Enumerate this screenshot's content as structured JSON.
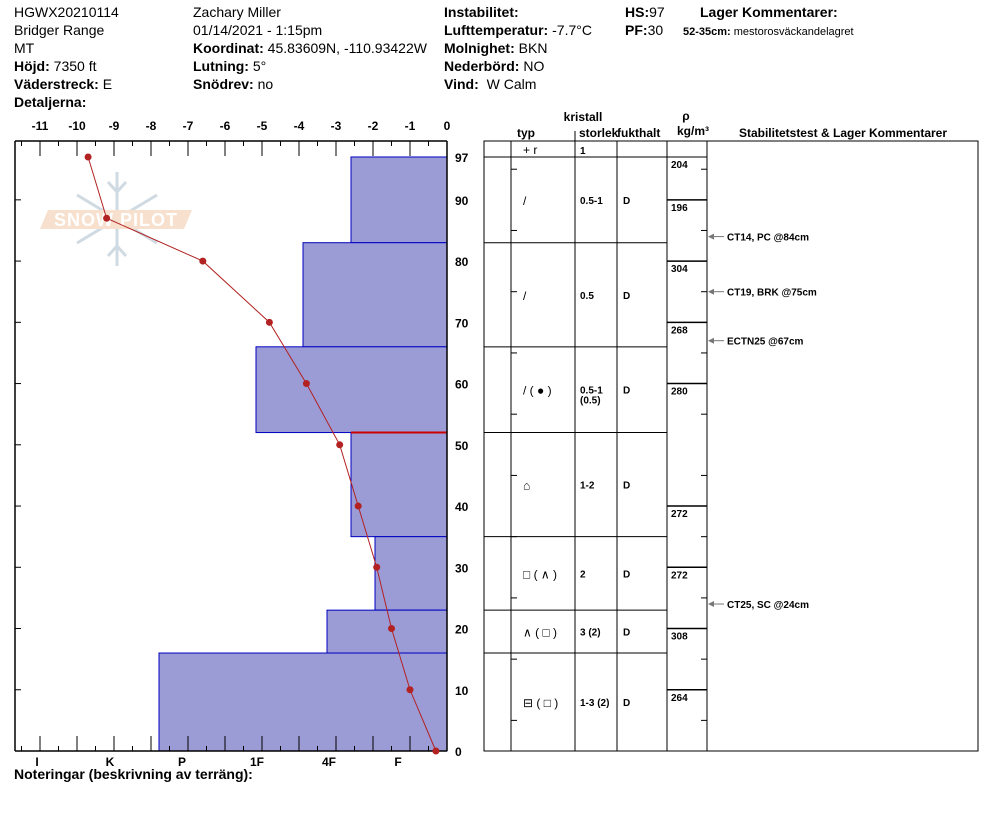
{
  "header": {
    "col1": [
      "HGWX20210114",
      "Bridger Range",
      "MT"
    ],
    "hojd": {
      "label": "Höjd:",
      "value": "7350 ft"
    },
    "vaderstreck": {
      "label": "Väderstreck:",
      "value": "E"
    },
    "detaljerna": {
      "label": "Detaljerna:"
    },
    "observer": "Zachary Miller",
    "datetime": "01/14/2021 - 1:15pm",
    "koordinat": {
      "label": "Koordinat:",
      "value": "45.83609N, -110.93422W"
    },
    "lutning": {
      "label": "Lutning:",
      "value": "5°"
    },
    "snodrev": {
      "label": "Snödrev:",
      "value": "no"
    },
    "instabilitet": {
      "label": "Instabilitet:",
      "value": ""
    },
    "lufttemperatur": {
      "label": "Lufttemperatur:",
      "value": "-7.7°C"
    },
    "molnighet": {
      "label": "Molnighet:",
      "value": "BKN"
    },
    "nederbord": {
      "label": "Nederbörd:",
      "value": "NO"
    },
    "vind": {
      "label": "Vind:",
      "value": "W Calm"
    },
    "hs": {
      "label": "HS:",
      "value": "97"
    },
    "pf": {
      "label": "PF:",
      "value": "30"
    },
    "lager_kommentarer_title": "Lager Kommentarer:",
    "lager_comment": {
      "label": "52-35cm:",
      "value": "mestorosväckandelagret"
    }
  },
  "footer": {
    "notes_label": "Noteringar (beskrivning av terräng):"
  },
  "watermark": "SNOW PILOT",
  "colors": {
    "hardness_fill": "#9b9bd6",
    "hardness_stroke": "#0000c0",
    "temperature": "#b22222",
    "concern_line": "#cc0000"
  },
  "table_headers": {
    "kristall": "kristall",
    "typ": "typ",
    "storlek": "storlek",
    "fukthalt": "fukthalt",
    "rho": "ρ",
    "density_unit": "kg/m³",
    "comments": "Stabilitetstest & Lager Kommentarer"
  },
  "chart_data": {
    "type": "snow-profile",
    "temperature_axis": {
      "ticks": [
        -11,
        -10,
        -9,
        -8,
        -7,
        -6,
        -5,
        -4,
        -3,
        -2,
        -1,
        0
      ],
      "range": [
        -11.7,
        0
      ],
      "unit": "°C"
    },
    "height_axis": {
      "ticks": [
        0,
        10,
        20,
        30,
        40,
        50,
        60,
        70,
        80,
        90,
        97
      ],
      "range": [
        0,
        97
      ],
      "unit": "cm"
    },
    "hardness_axis": {
      "labels": [
        "I",
        "K",
        "P",
        "1F",
        "4F",
        "F"
      ]
    },
    "temperature_profile": [
      {
        "h": 97,
        "t": -9.7
      },
      {
        "h": 87,
        "t": -9.2
      },
      {
        "h": 80,
        "t": -6.6
      },
      {
        "h": 70,
        "t": -4.8
      },
      {
        "h": 60,
        "t": -3.8
      },
      {
        "h": 50,
        "t": -2.9
      },
      {
        "h": 40,
        "t": -2.4
      },
      {
        "h": 30,
        "t": -1.9
      },
      {
        "h": 20,
        "t": -1.5
      },
      {
        "h": 10,
        "t": -1.0
      },
      {
        "h": 0,
        "t": -0.3
      }
    ],
    "concern_line_height": 52,
    "surface": {
      "typ": "+ r",
      "storlek": "1"
    },
    "layers": [
      {
        "top": 97,
        "bottom": 83,
        "hardness": "F+",
        "typ": "/",
        "storlek": "0.5-1",
        "fukthalt": "D"
      },
      {
        "top": 83,
        "bottom": 66,
        "hardness": "4F",
        "typ": "/",
        "storlek": "0.5",
        "fukthalt": "D"
      },
      {
        "top": 66,
        "bottom": 52,
        "hardness": "1F-",
        "typ": "/ ( ● )",
        "storlek": "0.5-1\n(0.5)",
        "fukthalt": "D"
      },
      {
        "top": 52,
        "bottom": 35,
        "hardness": "F+",
        "typ": "⌂",
        "storlek": "1-2",
        "fukthalt": "D"
      },
      {
        "top": 35,
        "bottom": 23,
        "hardness": "F",
        "typ": "□ ( ∧ )",
        "storlek": "2",
        "fukthalt": "D"
      },
      {
        "top": 23,
        "bottom": 16,
        "hardness": "4F-",
        "typ": "∧ ( □ )",
        "storlek": "3 (2)",
        "fukthalt": "D"
      },
      {
        "top": 16,
        "bottom": 0,
        "hardness": "P",
        "typ": "⊟ ( □ )",
        "storlek": "1-3 (2)",
        "fukthalt": "D"
      }
    ],
    "density": [
      {
        "top": 97,
        "bottom": 90,
        "value": "204"
      },
      {
        "top": 90,
        "bottom": 80,
        "value": "196"
      },
      {
        "top": 80,
        "bottom": 70,
        "value": "304"
      },
      {
        "top": 70,
        "bottom": 60,
        "value": "268"
      },
      {
        "top": 60,
        "bottom": 40,
        "value": "280"
      },
      {
        "top": 40,
        "bottom": 30,
        "value": "272"
      },
      {
        "top": 30,
        "bottom": 20,
        "value": "272"
      },
      {
        "top": 20,
        "bottom": 10,
        "value": "308"
      },
      {
        "top": 10,
        "bottom": 0,
        "value": "264"
      }
    ],
    "stability_tests": [
      {
        "h": 84,
        "text": "CT14, PC @84cm"
      },
      {
        "h": 75,
        "text": "CT19, BRK @75cm"
      },
      {
        "h": 67,
        "text": "ECTN25 @67cm"
      },
      {
        "h": 24,
        "text": "CT25, SC @24cm"
      }
    ]
  }
}
